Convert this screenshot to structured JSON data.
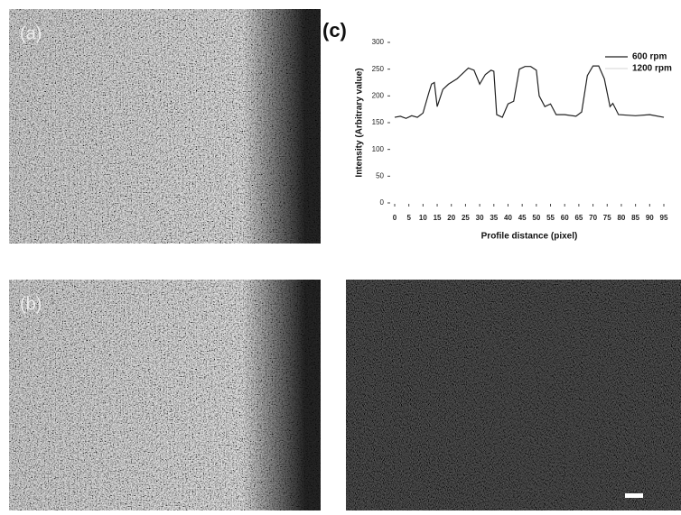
{
  "figure": {
    "labels": [
      "(a)",
      "(b)"
    ]
  },
  "chart_data": {
    "type": "line",
    "label": "(c)",
    "x_label": "Profile distance (pixel)",
    "y_label": "Intensity (Arbitrary value)",
    "x": [
      0,
      2,
      4,
      6,
      8,
      10,
      12,
      13,
      14,
      15,
      17,
      19,
      22,
      24,
      26,
      28,
      30,
      32,
      34,
      35,
      36,
      38,
      40,
      42,
      44,
      46,
      48,
      50,
      51,
      53,
      55,
      57,
      60,
      64,
      66,
      68,
      70,
      72,
      74,
      76,
      77,
      79,
      85,
      90,
      95
    ],
    "series": [
      {
        "name": "600 rpm",
        "color": "#222222",
        "values": [
          160,
          162,
          158,
          163,
          160,
          168,
          205,
          222,
          225,
          180,
          212,
          222,
          232,
          242,
          252,
          248,
          222,
          240,
          248,
          246,
          165,
          160,
          185,
          190,
          250,
          255,
          255,
          248,
          200,
          180,
          185,
          165,
          165,
          162,
          170,
          238,
          256,
          256,
          232,
          180,
          186,
          165,
          163,
          165,
          160
        ]
      },
      {
        "name": "1200 rpm",
        "color": "#dddddd",
        "values": [
          null,
          null,
          null,
          null,
          null,
          null,
          null,
          null,
          null,
          null,
          null,
          null,
          null,
          null,
          null,
          null,
          null,
          null,
          null,
          null,
          null,
          null,
          null,
          null,
          null,
          null,
          null,
          null,
          null,
          null,
          null,
          null,
          null,
          null,
          null,
          null,
          null,
          null,
          null,
          null,
          null,
          null,
          null,
          null,
          null
        ]
      }
    ],
    "xlim": [
      0,
      95
    ],
    "xticks": [
      0,
      5,
      10,
      15,
      20,
      25,
      30,
      35,
      40,
      45,
      50,
      55,
      60,
      65,
      70,
      75,
      80,
      85,
      90,
      95
    ],
    "ylim": [
      0,
      300
    ],
    "yticks": [
      0,
      50,
      100,
      150,
      200,
      250,
      300
    ],
    "legend": "upper right"
  }
}
